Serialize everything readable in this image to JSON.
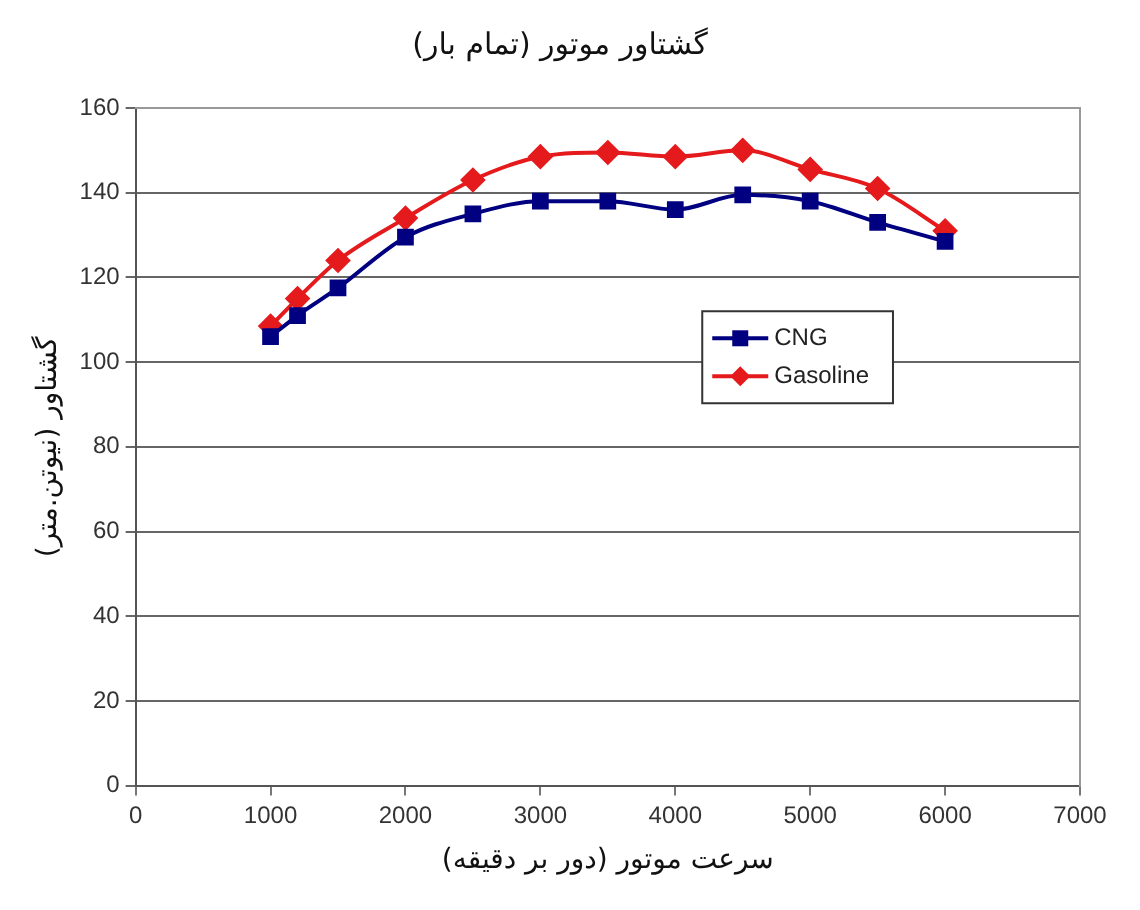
{
  "chart_data": {
    "type": "line",
    "title": "گشتاور موتور (تمام بار)",
    "xlabel": "سرعت موتور (دور بر دقیقه)",
    "ylabel": "گشتاور (نیوتن.متر)",
    "x": [
      1000,
      1200,
      1500,
      2000,
      2500,
      3000,
      3500,
      4000,
      4500,
      5000,
      5500,
      6000
    ],
    "series": [
      {
        "name": "CNG",
        "color": "#000080",
        "marker": "square",
        "values": [
          106,
          111,
          117.5,
          129.5,
          135,
          138,
          138,
          136,
          139.5,
          138,
          133,
          128.5
        ]
      },
      {
        "name": "Gasoline",
        "color": "#e41a1c",
        "marker": "diamond",
        "values": [
          108.5,
          115,
          124,
          134,
          143,
          148.5,
          149.5,
          148.5,
          150,
          145.5,
          141,
          131
        ]
      }
    ],
    "xlim": [
      0,
      7000
    ],
    "xticks": [
      0,
      1000,
      2000,
      3000,
      4000,
      5000,
      6000,
      7000
    ],
    "ylim": [
      0,
      160
    ],
    "yticks": [
      0,
      20,
      40,
      60,
      80,
      100,
      120,
      140,
      160
    ],
    "grid": "y",
    "legend": "right",
    "line_style": "solid"
  }
}
